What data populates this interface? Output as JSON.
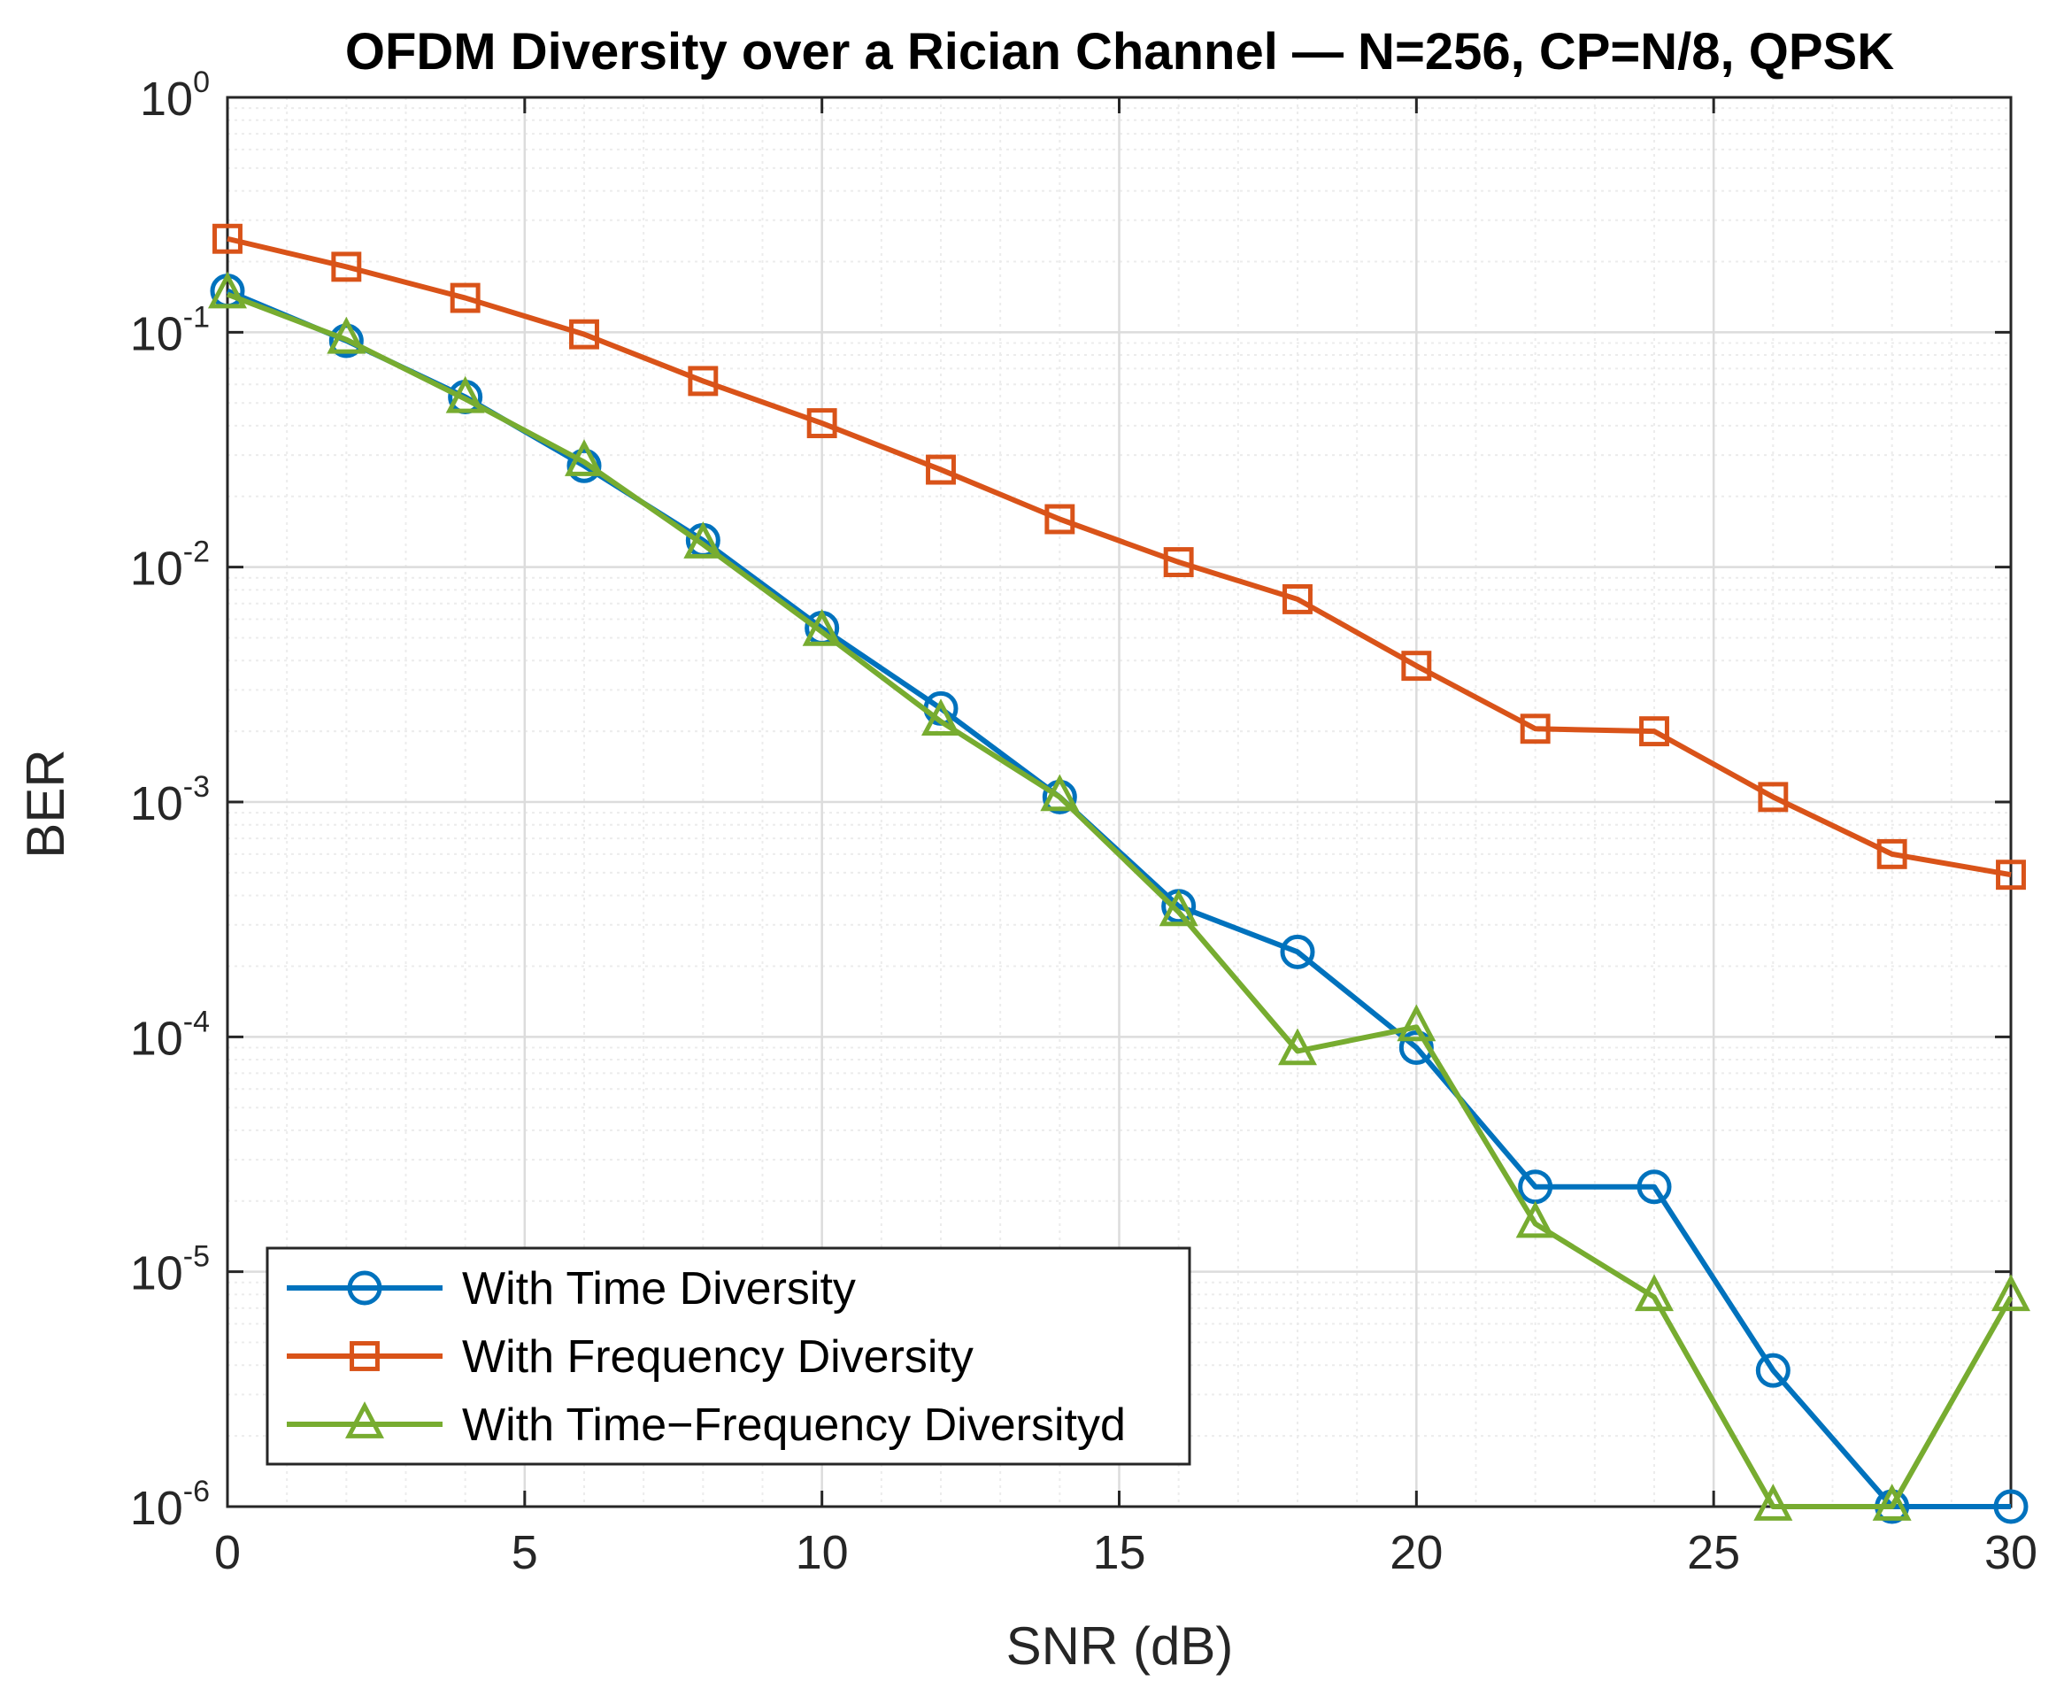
{
  "chart_data": {
    "type": "line",
    "title": "OFDM Diversity over a Rician Channel — N=256, CP=N/8, QPSK",
    "xlabel": "SNR (dB)",
    "ylabel": "BER",
    "xlim": [
      0,
      30
    ],
    "ylim": [
      1e-06,
      1
    ],
    "yscale": "log",
    "grid": true,
    "legend_position": "bottom-left",
    "x_ticks": [
      "0",
      "5",
      "10",
      "15",
      "20",
      "25",
      "30"
    ],
    "y_ticks": [
      {
        "base": "10",
        "exp": "0"
      },
      {
        "base": "10",
        "exp": "-1"
      },
      {
        "base": "10",
        "exp": "-2"
      },
      {
        "base": "10",
        "exp": "-3"
      },
      {
        "base": "10",
        "exp": "-4"
      },
      {
        "base": "10",
        "exp": "-5"
      },
      {
        "base": "10",
        "exp": "-6"
      }
    ],
    "x": [
      0,
      2,
      4,
      6,
      8,
      10,
      12,
      14,
      16,
      18,
      20,
      22,
      24,
      26,
      28,
      30
    ],
    "series": [
      {
        "name": "With Time Diversity",
        "color": "#0072BD",
        "marker": "circle",
        "values": [
          0.15,
          0.092,
          0.053,
          0.027,
          0.013,
          0.0055,
          0.0025,
          0.00105,
          0.00036,
          0.00023,
          9e-05,
          2.3e-05,
          2.3e-05,
          3.8e-06,
          1e-06,
          1e-06
        ]
      },
      {
        "name": "With Frequency Diversity",
        "color": "#D95319",
        "marker": "square",
        "values": [
          0.25,
          0.19,
          0.14,
          0.098,
          0.062,
          0.041,
          0.026,
          0.016,
          0.0105,
          0.0073,
          0.0038,
          0.00205,
          0.002,
          0.00105,
          0.0006,
          0.00049
        ]
      },
      {
        "name": "With Time−Frequency Diversityd",
        "color": "#77AC30",
        "marker": "triangle",
        "values": [
          0.145,
          0.093,
          0.052,
          0.028,
          0.0125,
          0.0053,
          0.0022,
          0.00105,
          0.00034,
          8.7e-05,
          0.00011,
          1.6e-05,
          7.8e-06,
          1e-06,
          1e-06,
          7.8e-06
        ]
      }
    ]
  }
}
